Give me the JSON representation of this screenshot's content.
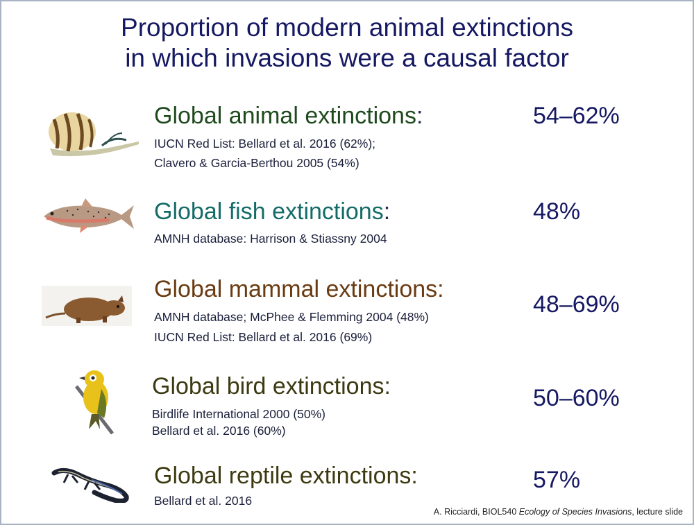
{
  "title_line1": "Proportion of modern animal extinctions",
  "title_line2": "in which invasions were a causal factor",
  "rows": [
    {
      "heading": "Global animal extinctions",
      "heading_color": "#1f4a1e",
      "icon": "snail-icon",
      "lines": [
        "IUCN Red List:  Bellard et al. 2016 (62%);",
        "Clavero & Garcia-Berthou 2005 (54%)"
      ],
      "percent": "54–62%"
    },
    {
      "heading": "Global fish extinctions",
      "heading_color": "#146b68",
      "icon": "trout-icon",
      "lines": [
        "AMNH database:  Harrison & Stiassny 2004"
      ],
      "percent": "48%"
    },
    {
      "heading": "Global mammal extinctions:",
      "heading_color": "#6a3b12",
      "icon": "rat-icon",
      "lines": [
        "AMNH database;  McPhee & Flemming 2004 (48%)",
        "IUCN Red List:  Bellard et al. 2016 (69%)"
      ],
      "percent": "48–69%"
    },
    {
      "heading": "Global bird extinctions:",
      "heading_color": "#3b3a12",
      "icon": "bird-icon",
      "lines": [
        "Birdlife International 2000 (50%)",
        "Bellard et al. 2016 (60%)"
      ],
      "percent": "50–60%"
    },
    {
      "heading": "Global reptile extinctions:",
      "heading_color": "#3d3a10",
      "icon": "lizard-icon",
      "lines": [
        "Bellard et al. 2016"
      ],
      "percent": "57%"
    }
  ],
  "colon": ":",
  "credit_prefix": "A. Ricciardi, BIOL540 ",
  "credit_course": "Ecology of Species Invasions",
  "credit_suffix": ", lecture slide"
}
